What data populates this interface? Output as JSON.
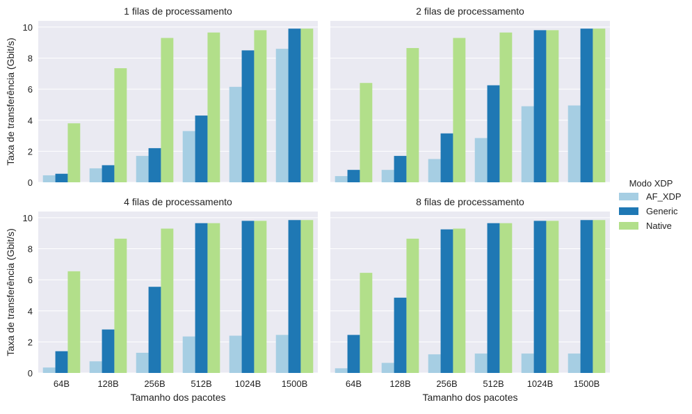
{
  "chart_data": {
    "type": "bar",
    "categories": [
      "64B",
      "128B",
      "256B",
      "512B",
      "1024B",
      "1500B"
    ],
    "xlabel": "Tamanho dos pacotes",
    "ylabel": "Taxa de transferência (Gbit/s)",
    "ylim": [
      0,
      10.4
    ],
    "yticks": [
      0,
      2,
      4,
      6,
      8,
      10
    ],
    "grid": true,
    "legend": {
      "title": "Modo XDP",
      "placement": "right",
      "entries": [
        "AF_XDP",
        "Generic",
        "Native"
      ]
    },
    "colors": {
      "AF_XDP": "#a6cee3",
      "Generic": "#1f78b4",
      "Native": "#b2df8a",
      "panel_bg": "#eaeaf2",
      "grid": "#ffffff"
    },
    "panels": [
      {
        "title": "1 filas de processamento",
        "series": [
          {
            "name": "AF_XDP",
            "values": [
              0.45,
              0.9,
              1.7,
              3.3,
              6.15,
              8.6
            ]
          },
          {
            "name": "Generic",
            "values": [
              0.55,
              1.1,
              2.2,
              4.3,
              8.5,
              9.9
            ]
          },
          {
            "name": "Native",
            "values": [
              3.8,
              7.35,
              9.3,
              9.65,
              9.8,
              9.9
            ]
          }
        ]
      },
      {
        "title": "2 filas de processamento",
        "series": [
          {
            "name": "AF_XDP",
            "values": [
              0.4,
              0.8,
              1.5,
              2.85,
              4.9,
              4.95
            ]
          },
          {
            "name": "Generic",
            "values": [
              0.8,
              1.7,
              3.15,
              6.25,
              9.8,
              9.9
            ]
          },
          {
            "name": "Native",
            "values": [
              6.4,
              8.65,
              9.3,
              9.65,
              9.8,
              9.9
            ]
          }
        ]
      },
      {
        "title": "4 filas de processamento",
        "series": [
          {
            "name": "AF_XDP",
            "values": [
              0.35,
              0.75,
              1.3,
              2.35,
              2.4,
              2.45
            ]
          },
          {
            "name": "Generic",
            "values": [
              1.4,
              2.8,
              5.55,
              9.65,
              9.8,
              9.85
            ]
          },
          {
            "name": "Native",
            "values": [
              6.55,
              8.65,
              9.3,
              9.65,
              9.8,
              9.85
            ]
          }
        ]
      },
      {
        "title": "8 filas de processamento",
        "series": [
          {
            "name": "AF_XDP",
            "values": [
              0.3,
              0.65,
              1.2,
              1.25,
              1.25,
              1.25
            ]
          },
          {
            "name": "Generic",
            "values": [
              2.45,
              4.85,
              9.25,
              9.65,
              9.8,
              9.85
            ]
          },
          {
            "name": "Native",
            "values": [
              6.45,
              8.65,
              9.3,
              9.65,
              9.8,
              9.85
            ]
          }
        ]
      }
    ]
  }
}
